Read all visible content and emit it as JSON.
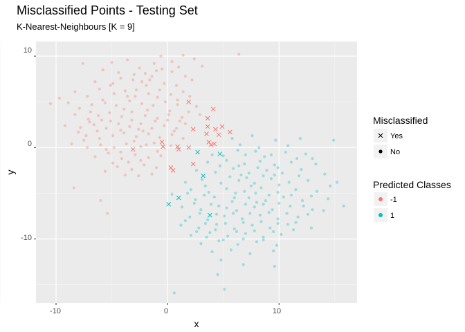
{
  "chart_data": {
    "type": "scatter",
    "title": "Misclassified Points - Testing Set",
    "subtitle": "K-Nearest-Neighbours [K = 9]",
    "xlabel": "x",
    "ylabel": "y",
    "xlim": [
      -11.8,
      17.0
    ],
    "ylim": [
      -17.0,
      11.6
    ],
    "x_ticks": [
      -10,
      0,
      10
    ],
    "y_ticks": [
      10,
      0,
      -10
    ],
    "grid": true,
    "legend_placement": "right",
    "legends": {
      "shape": {
        "title": "Misclassified",
        "items": [
          {
            "label": "Yes",
            "shape": "cross"
          },
          {
            "label": "No",
            "shape": "dot"
          }
        ]
      },
      "color": {
        "title": "Predicted Classes",
        "items": [
          {
            "label": "-1",
            "color": "#F8766D"
          },
          {
            "label": "1",
            "color": "#00BFC4"
          }
        ]
      }
    },
    "misclassified": [
      {
        "x": 1.9,
        "y": 5.0,
        "class": "-1"
      },
      {
        "x": 4.1,
        "y": 4.2,
        "class": "-1"
      },
      {
        "x": 3.6,
        "y": 3.2,
        "class": "-1"
      },
      {
        "x": 2.3,
        "y": 2.0,
        "class": "-1"
      },
      {
        "x": 3.6,
        "y": 2.3,
        "class": "-1"
      },
      {
        "x": 4.3,
        "y": 2.0,
        "class": "-1"
      },
      {
        "x": 4.9,
        "y": 2.3,
        "class": "-1"
      },
      {
        "x": 3.5,
        "y": 1.5,
        "class": "-1"
      },
      {
        "x": 4.6,
        "y": 1.4,
        "class": "-1"
      },
      {
        "x": 5.6,
        "y": 1.7,
        "class": "-1"
      },
      {
        "x": 3.7,
        "y": 0.6,
        "class": "-1"
      },
      {
        "x": 4.2,
        "y": 0.4,
        "class": "-1"
      },
      {
        "x": 3.9,
        "y": 0.3,
        "class": "-1"
      },
      {
        "x": -3.1,
        "y": -0.2,
        "class": "-1"
      },
      {
        "x": -0.5,
        "y": 0.6,
        "class": "-1"
      },
      {
        "x": -0.4,
        "y": 0.1,
        "class": "-1"
      },
      {
        "x": 0.9,
        "y": 0.1,
        "class": "-1"
      },
      {
        "x": 1.0,
        "y": -0.2,
        "class": "-1"
      },
      {
        "x": 1.9,
        "y": 0.0,
        "class": "-1"
      },
      {
        "x": 0.3,
        "y": -2.2,
        "class": "-1"
      },
      {
        "x": 0.5,
        "y": -2.5,
        "class": "-1"
      },
      {
        "x": 2.3,
        "y": -1.8,
        "class": "-1"
      },
      {
        "x": 2.7,
        "y": -0.5,
        "class": "1"
      },
      {
        "x": 4.7,
        "y": -0.7,
        "class": "1"
      },
      {
        "x": 3.2,
        "y": -3.1,
        "class": "1"
      },
      {
        "x": 1.0,
        "y": -5.5,
        "class": "1"
      },
      {
        "x": 0.1,
        "y": -6.2,
        "class": "1"
      },
      {
        "x": 3.8,
        "y": -7.4,
        "class": "1"
      }
    ],
    "correct": {
      "-1": [
        [
          -7.6,
          9.2
        ],
        [
          -5.8,
          8.5
        ],
        [
          -5.0,
          9.3
        ],
        [
          -3.6,
          9.6
        ],
        [
          -2.5,
          8.7
        ],
        [
          -1.2,
          9.2
        ],
        [
          -0.6,
          10.0
        ],
        [
          0.4,
          9.4
        ],
        [
          1.4,
          10.1
        ],
        [
          2.4,
          9.7
        ],
        [
          6.4,
          10.2
        ],
        [
          3.1,
          8.9
        ],
        [
          -2.0,
          8.1
        ],
        [
          -1.0,
          8.4
        ],
        [
          0.4,
          8.3
        ],
        [
          1.6,
          7.8
        ],
        [
          -6.5,
          7.2
        ],
        [
          -5.1,
          6.8
        ],
        [
          -4.2,
          7.6
        ],
        [
          -3.1,
          7.4
        ],
        [
          -2.3,
          7.2
        ],
        [
          -1.4,
          7.8
        ],
        [
          -0.3,
          7.0
        ],
        [
          0.8,
          6.8
        ],
        [
          2.2,
          7.4
        ],
        [
          -8.3,
          6.1
        ],
        [
          -7.2,
          5.6
        ],
        [
          -6.1,
          6.4
        ],
        [
          -4.8,
          5.9
        ],
        [
          -3.8,
          6.2
        ],
        [
          -2.8,
          6.3
        ],
        [
          -1.7,
          5.9
        ],
        [
          -0.7,
          6.3
        ],
        [
          0.3,
          5.8
        ],
        [
          1.4,
          6.1
        ],
        [
          -9.7,
          5.4
        ],
        [
          -8.9,
          4.9
        ],
        [
          -7.9,
          4.3
        ],
        [
          -6.8,
          4.7
        ],
        [
          -5.6,
          4.9
        ],
        [
          -4.6,
          4.6
        ],
        [
          -3.4,
          5.1
        ],
        [
          -2.3,
          4.8
        ],
        [
          -1.3,
          4.6
        ],
        [
          -0.2,
          5.0
        ],
        [
          0.9,
          4.7
        ],
        [
          2.6,
          4.5
        ],
        [
          -10.5,
          4.8
        ],
        [
          -8.3,
          3.6
        ],
        [
          -7.1,
          3.1
        ],
        [
          -6.2,
          3.5
        ],
        [
          -5.2,
          3.8
        ],
        [
          -4.1,
          3.4
        ],
        [
          -3.2,
          3.9
        ],
        [
          -2.0,
          3.5
        ],
        [
          -0.9,
          3.2
        ],
        [
          0.1,
          3.6
        ],
        [
          1.3,
          3.3
        ],
        [
          2.9,
          3.6
        ],
        [
          -9.2,
          2.4
        ],
        [
          -7.8,
          2.2
        ],
        [
          -6.6,
          2.5
        ],
        [
          -5.5,
          2.1
        ],
        [
          -4.4,
          2.6
        ],
        [
          -3.4,
          2.3
        ],
        [
          -2.4,
          2.6
        ],
        [
          -1.4,
          2.1
        ],
        [
          -0.3,
          2.4
        ],
        [
          0.8,
          2.1
        ],
        [
          1.6,
          2.6
        ],
        [
          -7.3,
          1.3
        ],
        [
          -6.1,
          1.0
        ],
        [
          -4.9,
          1.3
        ],
        [
          -3.9,
          1.6
        ],
        [
          -2.8,
          1.2
        ],
        [
          -1.7,
          1.5
        ],
        [
          -0.7,
          1.1
        ],
        [
          0.4,
          1.4
        ],
        [
          1.4,
          1.0
        ],
        [
          -8.6,
          0.4
        ],
        [
          -7.2,
          0.0
        ],
        [
          -6.0,
          0.3
        ],
        [
          -4.8,
          0.0
        ],
        [
          -3.7,
          0.4
        ],
        [
          -2.4,
          0.1
        ],
        [
          -1.2,
          0.5
        ],
        [
          0.3,
          0.2
        ],
        [
          -6.5,
          -1.0
        ],
        [
          -5.3,
          -0.6
        ],
        [
          -4.1,
          -1.2
        ],
        [
          -2.9,
          -0.8
        ],
        [
          -1.7,
          -1.1
        ],
        [
          -0.6,
          -0.9
        ],
        [
          -4.5,
          -2.1
        ],
        [
          -3.2,
          -2.4
        ],
        [
          -2.1,
          -1.9
        ],
        [
          -1.0,
          -2.2
        ],
        [
          -5.6,
          -2.6
        ],
        [
          -3.8,
          -3.0
        ],
        [
          -2.6,
          -3.1
        ],
        [
          -1.4,
          -2.9
        ],
        [
          -6.0,
          -5.8
        ],
        [
          -5.4,
          -7.2
        ],
        [
          -8.4,
          -4.4
        ],
        [
          -5.8,
          5.2
        ],
        [
          -4.4,
          8.2
        ],
        [
          -3.0,
          8.0
        ],
        [
          -1.9,
          6.8
        ],
        [
          -0.5,
          8.6
        ],
        [
          1.0,
          8.8
        ],
        [
          -6.9,
          3.9
        ],
        [
          -5.9,
          3.0
        ],
        [
          -4.9,
          7.0
        ],
        [
          -3.9,
          4.2
        ],
        [
          -2.9,
          5.6
        ],
        [
          -1.8,
          4.1
        ],
        [
          -0.9,
          5.5
        ],
        [
          0.2,
          4.0
        ],
        [
          1.1,
          2.9
        ],
        [
          -7.5,
          0.8
        ],
        [
          -6.3,
          1.8
        ],
        [
          -5.1,
          2.9
        ],
        [
          -4.2,
          1.9
        ],
        [
          -3.2,
          3.0
        ],
        [
          -2.2,
          1.8
        ],
        [
          -1.1,
          2.9
        ],
        [
          0.0,
          3.0
        ],
        [
          1.9,
          3.9
        ],
        [
          -8.0,
          1.7
        ],
        [
          -5.5,
          -0.2
        ],
        [
          -4.2,
          -0.5
        ],
        [
          -3.0,
          0.7
        ],
        [
          -1.9,
          0.3
        ],
        [
          -0.9,
          -0.4
        ],
        [
          -3.5,
          -1.6
        ],
        [
          -2.4,
          -1.4
        ],
        [
          -4.9,
          -1.7
        ],
        [
          -1.6,
          7.4
        ],
        [
          0.9,
          5.2
        ],
        [
          2.0,
          5.6
        ],
        [
          -2.6,
          2.0
        ],
        [
          0.6,
          1.8
        ],
        [
          -7.0,
          2.8
        ],
        [
          -3.6,
          5.6
        ]
      ],
      "1": [
        [
          5.8,
          1.0
        ],
        [
          7.6,
          1.3
        ],
        [
          9.7,
          0.8
        ],
        [
          11.9,
          1.0
        ],
        [
          14.9,
          0.8
        ],
        [
          4.0,
          -0.8
        ],
        [
          6.3,
          -0.3
        ],
        [
          7.9,
          -0.4
        ],
        [
          9.3,
          -0.8
        ],
        [
          10.6,
          -0.5
        ],
        [
          12.4,
          -0.7
        ],
        [
          3.6,
          -1.6
        ],
        [
          5.3,
          -1.4
        ],
        [
          6.9,
          -1.8
        ],
        [
          8.3,
          -1.5
        ],
        [
          9.6,
          -1.9
        ],
        [
          11.1,
          -1.6
        ],
        [
          13.3,
          -1.8
        ],
        [
          2.6,
          -2.5
        ],
        [
          4.3,
          -2.7
        ],
        [
          5.9,
          -2.3
        ],
        [
          7.3,
          -2.8
        ],
        [
          8.9,
          -2.5
        ],
        [
          10.3,
          -2.8
        ],
        [
          12.0,
          -2.4
        ],
        [
          14.1,
          -2.9
        ],
        [
          1.6,
          -3.8
        ],
        [
          3.1,
          -3.5
        ],
        [
          4.8,
          -3.9
        ],
        [
          6.4,
          -3.6
        ],
        [
          7.8,
          -3.9
        ],
        [
          9.3,
          -3.4
        ],
        [
          10.9,
          -3.8
        ],
        [
          12.6,
          -3.6
        ],
        [
          15.2,
          -3.8
        ],
        [
          2.1,
          -4.6
        ],
        [
          3.7,
          -4.9
        ],
        [
          5.3,
          -4.5
        ],
        [
          6.9,
          -4.8
        ],
        [
          8.4,
          -4.4
        ],
        [
          9.9,
          -4.9
        ],
        [
          11.5,
          -4.6
        ],
        [
          13.4,
          -4.8
        ],
        [
          0.4,
          -5.1
        ],
        [
          2.5,
          -5.7
        ],
        [
          4.2,
          -5.4
        ],
        [
          5.8,
          -5.9
        ],
        [
          7.3,
          -5.5
        ],
        [
          8.8,
          -5.8
        ],
        [
          10.4,
          -5.4
        ],
        [
          12.1,
          -5.8
        ],
        [
          14.4,
          -5.6
        ],
        [
          1.3,
          -6.5
        ],
        [
          3.0,
          -6.8
        ],
        [
          4.6,
          -6.4
        ],
        [
          6.2,
          -6.9
        ],
        [
          7.8,
          -6.5
        ],
        [
          9.4,
          -6.8
        ],
        [
          11.0,
          -6.4
        ],
        [
          13.0,
          -6.8
        ],
        [
          15.8,
          -6.4
        ],
        [
          2.0,
          -7.6
        ],
        [
          3.6,
          -7.9
        ],
        [
          5.1,
          -7.5
        ],
        [
          6.7,
          -7.8
        ],
        [
          8.3,
          -7.4
        ],
        [
          9.9,
          -7.8
        ],
        [
          11.7,
          -7.6
        ],
        [
          1.2,
          -8.5
        ],
        [
          2.8,
          -8.8
        ],
        [
          4.4,
          -8.4
        ],
        [
          6.0,
          -8.9
        ],
        [
          7.6,
          -8.5
        ],
        [
          9.2,
          -8.8
        ],
        [
          10.8,
          -8.4
        ],
        [
          12.9,
          -8.8
        ],
        [
          2.1,
          -9.6
        ],
        [
          3.8,
          -9.3
        ],
        [
          5.4,
          -9.7
        ],
        [
          7.0,
          -9.4
        ],
        [
          8.6,
          -9.8
        ],
        [
          10.2,
          -9.5
        ],
        [
          3.0,
          -10.5
        ],
        [
          4.6,
          -10.2
        ],
        [
          6.3,
          -10.6
        ],
        [
          8.0,
          -10.3
        ],
        [
          9.8,
          -10.7
        ],
        [
          4.0,
          -11.4
        ],
        [
          5.7,
          -11.2
        ],
        [
          7.4,
          -11.6
        ],
        [
          9.5,
          -11.3
        ],
        [
          4.8,
          -12.3
        ],
        [
          6.8,
          -12.8
        ],
        [
          9.6,
          -13.0
        ],
        [
          4.5,
          -13.9
        ],
        [
          5.1,
          -15.5
        ],
        [
          0.6,
          -15.9
        ],
        [
          6.5,
          0.3
        ],
        [
          10.8,
          0.2
        ],
        [
          5.0,
          -0.9
        ],
        [
          8.7,
          -1.0
        ],
        [
          11.6,
          -1.2
        ],
        [
          4.7,
          -2.0
        ],
        [
          6.4,
          -2.0
        ],
        [
          9.9,
          -2.2
        ],
        [
          13.0,
          -1.2
        ],
        [
          3.4,
          -4.2
        ],
        [
          5.6,
          -3.2
        ],
        [
          7.1,
          -3.3
        ],
        [
          8.6,
          -3.1
        ],
        [
          10.0,
          -4.1
        ],
        [
          11.8,
          -3.1
        ],
        [
          14.6,
          -4.2
        ],
        [
          1.8,
          -5.0
        ],
        [
          3.3,
          -5.2
        ],
        [
          6.1,
          -5.0
        ],
        [
          7.9,
          -5.0
        ],
        [
          9.1,
          -5.2
        ],
        [
          11.1,
          -5.2
        ],
        [
          12.9,
          -5.3
        ],
        [
          2.4,
          -6.1
        ],
        [
          3.9,
          -6.2
        ],
        [
          5.3,
          -6.6
        ],
        [
          7.0,
          -6.2
        ],
        [
          8.6,
          -6.2
        ],
        [
          10.0,
          -6.1
        ],
        [
          12.2,
          -6.4
        ],
        [
          14.0,
          -6.9
        ],
        [
          2.9,
          -7.2
        ],
        [
          4.4,
          -7.3
        ],
        [
          5.9,
          -7.2
        ],
        [
          7.4,
          -7.2
        ],
        [
          9.1,
          -7.1
        ],
        [
          10.7,
          -7.2
        ],
        [
          12.6,
          -7.3
        ],
        [
          1.6,
          -8.0
        ],
        [
          3.4,
          -8.3
        ],
        [
          5.2,
          -8.3
        ],
        [
          6.8,
          -8.2
        ],
        [
          8.4,
          -8.1
        ],
        [
          9.9,
          -8.3
        ],
        [
          11.5,
          -8.2
        ],
        [
          2.6,
          -9.2
        ],
        [
          4.3,
          -9.0
        ],
        [
          6.2,
          -9.2
        ],
        [
          7.8,
          -9.1
        ],
        [
          9.5,
          -9.2
        ],
        [
          11.3,
          -9.0
        ],
        [
          3.5,
          -9.8
        ],
        [
          5.0,
          -10.1
        ],
        [
          6.8,
          -10.0
        ],
        [
          8.6,
          -10.1
        ],
        [
          7.0,
          -0.8
        ],
        [
          8.2,
          0.0
        ],
        [
          6.0,
          -5.5
        ],
        [
          8.0,
          -6.0
        ],
        [
          7.5,
          -4.2
        ],
        [
          6.6,
          -3.0
        ],
        [
          9.6,
          -3.0
        ],
        [
          8.1,
          -2.2
        ]
      ]
    }
  }
}
